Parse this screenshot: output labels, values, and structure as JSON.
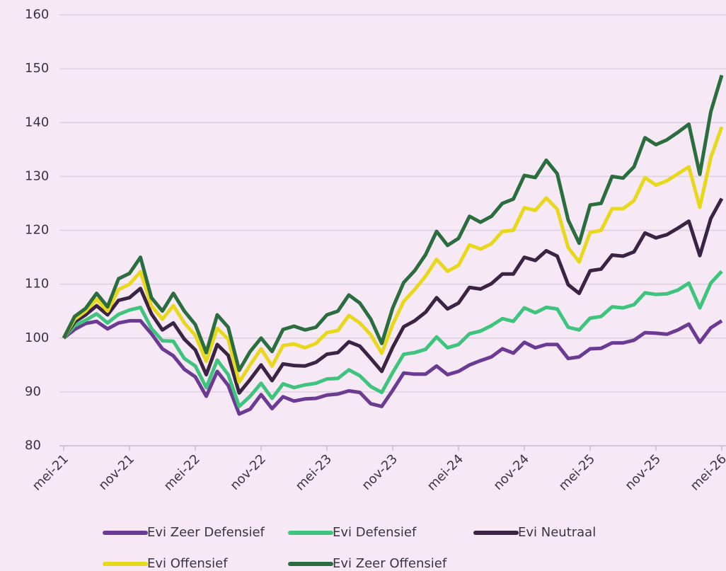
{
  "chart_data": {
    "type": "line",
    "categories": [
      "mei-21",
      null,
      null,
      null,
      null,
      null,
      "nov-21",
      null,
      null,
      null,
      null,
      null,
      "mei-22",
      null,
      null,
      null,
      null,
      null,
      "nov-22",
      null,
      null,
      null,
      null,
      null,
      "mei-23",
      null,
      null,
      null,
      null,
      null,
      "nov-23",
      null,
      null,
      null,
      null,
      null,
      "mei-24",
      null,
      null,
      null,
      null,
      null,
      "nov-24",
      null,
      null,
      null,
      null,
      null,
      "mei-25",
      null,
      null,
      null,
      null,
      null,
      "nov-25",
      null,
      null,
      null,
      null,
      null,
      "mei-26"
    ],
    "series": [
      {
        "name": "Evi Zeer Defensief",
        "color": "#6b3a92",
        "values": [
          100,
          101.6,
          102.7,
          103.1,
          101.7,
          102.8,
          103.2,
          103.2,
          100.8,
          98,
          96.7,
          94.2,
          92.8,
          89.2,
          93.8,
          91.2,
          85.9,
          86.8,
          89.5,
          86.9,
          89.1,
          88.3,
          88.7,
          88.8,
          89.4,
          89.6,
          90.2,
          89.9,
          87.8,
          87.3,
          90.3,
          93.5,
          93.3,
          93.3,
          94.8,
          93.2,
          93.8,
          95,
          95.8,
          96.5,
          98,
          97.2,
          99.2,
          98.2,
          98.8,
          98.8,
          96.2,
          96.5,
          98,
          98.1,
          99.1,
          99.1,
          99.6,
          101,
          100.9,
          100.7,
          101.5,
          102.6,
          99.2,
          101.9,
          103.2
        ]
      },
      {
        "name": "Evi Defensief",
        "color": "#3ec47c",
        "values": [
          100,
          102.3,
          103.3,
          104.5,
          102.8,
          104.4,
          105.2,
          105.7,
          101.8,
          99.5,
          99.4,
          96.2,
          94.8,
          90.8,
          95.9,
          93.2,
          87.3,
          89.2,
          91.6,
          88.8,
          91.5,
          90.8,
          91.3,
          91.6,
          92.4,
          92.5,
          94.1,
          93,
          91,
          89.9,
          93.6,
          97,
          97.3,
          97.9,
          100.2,
          98.2,
          98.8,
          100.8,
          101.3,
          102.3,
          103.6,
          103.1,
          105.6,
          104.7,
          105.7,
          105.4,
          102,
          101.5,
          103.7,
          104,
          105.8,
          105.6,
          106.2,
          108.4,
          108.1,
          108.2,
          108.9,
          110.2,
          105.6,
          110.2,
          112.4
        ]
      },
      {
        "name": "Evi Neutraal",
        "color": "#3b2344",
        "values": [
          100,
          103,
          104.3,
          106,
          104.3,
          107,
          107.5,
          109.2,
          104.5,
          101.5,
          102.8,
          99.8,
          97.8,
          93.2,
          98.8,
          96.8,
          89.8,
          92.3,
          95,
          92.1,
          95.2,
          94.9,
          94.8,
          95.5,
          97,
          97.3,
          99.3,
          98.5,
          96.2,
          93.8,
          98.3,
          102.1,
          103.2,
          104.8,
          107.5,
          105.4,
          106.5,
          109.4,
          109.1,
          110.1,
          111.9,
          111.9,
          115,
          114.4,
          116.2,
          115.2,
          109.9,
          108.3,
          112.5,
          112.8,
          115.4,
          115.2,
          116,
          119.5,
          118.6,
          119.2,
          120.4,
          121.7,
          115.3,
          122.2,
          125.9
        ]
      },
      {
        "name": "Evi Offensief",
        "color": "#e8d81c",
        "values": [
          100,
          103.5,
          105,
          107.2,
          105,
          109,
          110,
          112.3,
          106,
          103.5,
          106,
          102.8,
          100.5,
          95.7,
          101.8,
          99.8,
          91.8,
          95,
          98,
          94.8,
          98.6,
          98.9,
          98.2,
          99,
          101,
          101.4,
          104.2,
          102.8,
          100.6,
          97.2,
          102.5,
          106.8,
          109,
          111.5,
          114.6,
          112.4,
          113.5,
          117.3,
          116.5,
          117.5,
          119.8,
          120,
          124.2,
          123.7,
          126,
          123.9,
          116.8,
          114.1,
          119.6,
          120,
          124,
          124,
          125.5,
          129.8,
          128.4,
          129.2,
          130.5,
          131.8,
          124.3,
          133.5,
          139.2
        ]
      },
      {
        "name": "Evi Zeer Offensief",
        "color": "#2a6d3e",
        "values": [
          100,
          104,
          105.5,
          108.3,
          105.8,
          111,
          112,
          115,
          107.5,
          105,
          108.3,
          105,
          102.5,
          97.3,
          104.3,
          102,
          94,
          97.5,
          100,
          97.5,
          101.6,
          102.2,
          101.5,
          102,
          104.3,
          105,
          108,
          106.5,
          103.5,
          99,
          105.6,
          110.3,
          112.5,
          115.5,
          119.8,
          117.2,
          118.5,
          122.6,
          121.5,
          122.6,
          125,
          125.8,
          130.2,
          129.8,
          133,
          130.5,
          121.9,
          117.6,
          124.7,
          125,
          130,
          129.7,
          131.8,
          137.2,
          135.9,
          136.8,
          138.2,
          139.7,
          130.4,
          142,
          148.8
        ]
      }
    ],
    "ylim": [
      80,
      160
    ],
    "yticks": [
      80,
      90,
      100,
      110,
      120,
      130,
      140,
      150,
      160
    ],
    "grid": true,
    "legend": "bottom"
  }
}
